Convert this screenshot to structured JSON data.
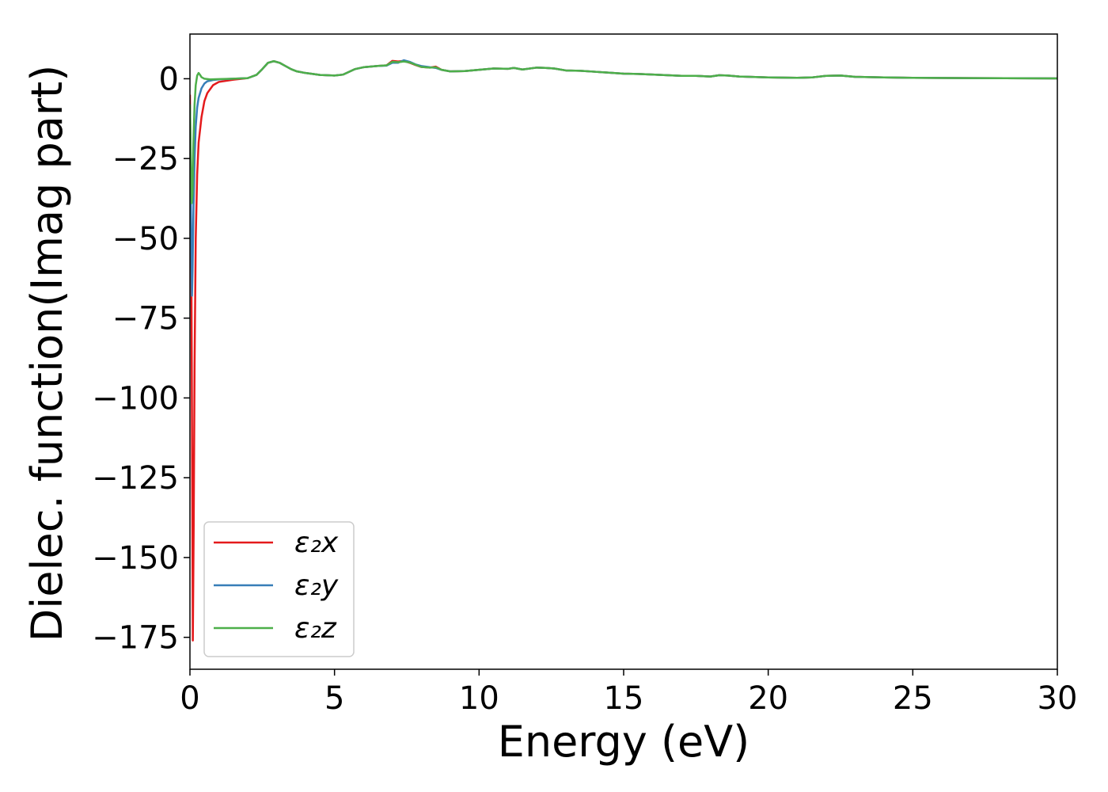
{
  "chart_data": {
    "type": "line",
    "title": "",
    "xlabel": "Energy (eV)",
    "ylabel": "Dielec. function(Imag part)",
    "xlim": [
      0,
      30
    ],
    "ylim": [
      -185,
      14
    ],
    "xticks": [
      0,
      5,
      10,
      15,
      20,
      25,
      30
    ],
    "yticks": [
      0,
      -25,
      -50,
      -75,
      -100,
      -125,
      -150,
      -175
    ],
    "xtick_labels": [
      "0",
      "5",
      "10",
      "15",
      "20",
      "25",
      "30"
    ],
    "ytick_labels": [
      "0",
      "−25",
      "−50",
      "−75",
      "−100",
      "−125",
      "−150",
      "−175"
    ],
    "grid": false,
    "legend_position": "lower-left",
    "series": [
      {
        "name": "ε₂x",
        "color": "#e41a1c",
        "points": [
          [
            0.0,
            -5
          ],
          [
            0.05,
            -60
          ],
          [
            0.08,
            -130
          ],
          [
            0.1,
            -176
          ],
          [
            0.13,
            -140
          ],
          [
            0.16,
            -90
          ],
          [
            0.2,
            -50
          ],
          [
            0.25,
            -30
          ],
          [
            0.3,
            -20
          ],
          [
            0.4,
            -12
          ],
          [
            0.5,
            -7
          ],
          [
            0.6,
            -4.5
          ],
          [
            0.8,
            -2
          ],
          [
            1.0,
            -1
          ],
          [
            1.5,
            -0.3
          ],
          [
            2.0,
            0.2
          ],
          [
            2.3,
            1.2
          ],
          [
            2.5,
            3
          ],
          [
            2.7,
            5
          ],
          [
            2.9,
            5.5
          ],
          [
            3.1,
            5
          ],
          [
            3.3,
            4
          ],
          [
            3.5,
            3
          ],
          [
            3.7,
            2.3
          ],
          [
            4.0,
            1.8
          ],
          [
            4.5,
            1.2
          ],
          [
            5.0,
            1
          ],
          [
            5.3,
            1.3
          ],
          [
            5.7,
            3
          ],
          [
            6.0,
            3.6
          ],
          [
            6.5,
            4
          ],
          [
            6.8,
            4.2
          ],
          [
            7.0,
            5.6
          ],
          [
            7.2,
            5.4
          ],
          [
            7.4,
            5.6
          ],
          [
            7.6,
            5
          ],
          [
            7.8,
            4.3
          ],
          [
            8.0,
            3.7
          ],
          [
            8.3,
            3.5
          ],
          [
            8.5,
            3.8
          ],
          [
            8.7,
            2.8
          ],
          [
            9.0,
            2.3
          ],
          [
            9.5,
            2.4
          ],
          [
            10.0,
            2.8
          ],
          [
            10.5,
            3.2
          ],
          [
            11.0,
            3.1
          ],
          [
            11.2,
            3.4
          ],
          [
            11.5,
            2.9
          ],
          [
            12.0,
            3.5
          ],
          [
            12.3,
            3.4
          ],
          [
            12.6,
            3.2
          ],
          [
            13.0,
            2.6
          ],
          [
            13.5,
            2.5
          ],
          [
            14.0,
            2.2
          ],
          [
            15.0,
            1.6
          ],
          [
            15.5,
            1.5
          ],
          [
            16.0,
            1.3
          ],
          [
            17.0,
            0.9
          ],
          [
            17.5,
            0.9
          ],
          [
            18.0,
            0.7
          ],
          [
            18.3,
            1.1
          ],
          [
            18.6,
            1.0
          ],
          [
            19.0,
            0.7
          ],
          [
            20.0,
            0.4
          ],
          [
            21.0,
            0.3
          ],
          [
            21.5,
            0.4
          ],
          [
            22.0,
            0.9
          ],
          [
            22.5,
            1.0
          ],
          [
            23.0,
            0.6
          ],
          [
            23.5,
            0.5
          ],
          [
            24.0,
            0.4
          ],
          [
            25.0,
            0.3
          ],
          [
            27.0,
            0.2
          ],
          [
            30.0,
            0.1
          ]
        ]
      },
      {
        "name": "ε₂y",
        "color": "#377eb8",
        "points": [
          [
            0.0,
            -10
          ],
          [
            0.04,
            -45
          ],
          [
            0.07,
            -68
          ],
          [
            0.09,
            -60
          ],
          [
            0.12,
            -42
          ],
          [
            0.16,
            -25
          ],
          [
            0.2,
            -15
          ],
          [
            0.25,
            -9
          ],
          [
            0.3,
            -6
          ],
          [
            0.4,
            -3
          ],
          [
            0.5,
            -1.5
          ],
          [
            0.6,
            -0.8
          ],
          [
            0.8,
            -0.4
          ],
          [
            1.0,
            -0.2
          ],
          [
            1.5,
            0
          ],
          [
            2.0,
            0.2
          ],
          [
            2.3,
            1.2
          ],
          [
            2.5,
            3
          ],
          [
            2.7,
            5
          ],
          [
            2.9,
            5.5
          ],
          [
            3.1,
            5
          ],
          [
            3.3,
            4
          ],
          [
            3.5,
            3
          ],
          [
            3.7,
            2.3
          ],
          [
            4.0,
            1.8
          ],
          [
            4.5,
            1.2
          ],
          [
            5.0,
            1
          ],
          [
            5.3,
            1.3
          ],
          [
            5.7,
            3
          ],
          [
            6.0,
            3.6
          ],
          [
            6.5,
            4
          ],
          [
            6.8,
            4.1
          ],
          [
            7.0,
            5.0
          ],
          [
            7.2,
            5.0
          ],
          [
            7.4,
            5.8
          ],
          [
            7.6,
            5.3
          ],
          [
            7.8,
            4.5
          ],
          [
            8.0,
            4.0
          ],
          [
            8.3,
            3.6
          ],
          [
            8.5,
            3.4
          ],
          [
            8.7,
            2.8
          ],
          [
            9.0,
            2.3
          ],
          [
            9.5,
            2.4
          ],
          [
            10.0,
            2.8
          ],
          [
            10.5,
            3.2
          ],
          [
            11.0,
            3.1
          ],
          [
            11.2,
            3.4
          ],
          [
            11.5,
            2.9
          ],
          [
            12.0,
            3.5
          ],
          [
            12.3,
            3.4
          ],
          [
            12.6,
            3.2
          ],
          [
            13.0,
            2.6
          ],
          [
            13.5,
            2.5
          ],
          [
            14.0,
            2.2
          ],
          [
            15.0,
            1.6
          ],
          [
            15.5,
            1.5
          ],
          [
            16.0,
            1.3
          ],
          [
            17.0,
            0.9
          ],
          [
            17.5,
            0.9
          ],
          [
            18.0,
            0.7
          ],
          [
            18.3,
            1.1
          ],
          [
            18.6,
            1.0
          ],
          [
            19.0,
            0.7
          ],
          [
            20.0,
            0.4
          ],
          [
            21.0,
            0.3
          ],
          [
            21.5,
            0.4
          ],
          [
            22.0,
            0.9
          ],
          [
            22.5,
            1.0
          ],
          [
            23.0,
            0.6
          ],
          [
            23.5,
            0.5
          ],
          [
            24.0,
            0.4
          ],
          [
            25.0,
            0.3
          ],
          [
            27.0,
            0.2
          ],
          [
            30.0,
            0.1
          ]
        ]
      },
      {
        "name": "ε₂z",
        "color": "#4daf4a",
        "points": [
          [
            0.0,
            -8
          ],
          [
            0.03,
            -25
          ],
          [
            0.06,
            -39
          ],
          [
            0.09,
            -36
          ],
          [
            0.12,
            -20
          ],
          [
            0.16,
            -8
          ],
          [
            0.2,
            -2
          ],
          [
            0.25,
            1
          ],
          [
            0.3,
            1.8
          ],
          [
            0.35,
            1.2
          ],
          [
            0.4,
            0.5
          ],
          [
            0.5,
            0.0
          ],
          [
            0.7,
            -0.2
          ],
          [
            1.0,
            -0.1
          ],
          [
            1.5,
            0
          ],
          [
            2.0,
            0.2
          ],
          [
            2.3,
            1.2
          ],
          [
            2.5,
            3
          ],
          [
            2.7,
            5
          ],
          [
            2.9,
            5.5
          ],
          [
            3.1,
            5
          ],
          [
            3.3,
            4
          ],
          [
            3.5,
            3
          ],
          [
            3.7,
            2.3
          ],
          [
            4.0,
            1.8
          ],
          [
            4.5,
            1.2
          ],
          [
            5.0,
            1
          ],
          [
            5.3,
            1.3
          ],
          [
            5.7,
            3
          ],
          [
            6.0,
            3.6
          ],
          [
            6.5,
            4
          ],
          [
            6.8,
            4.2
          ],
          [
            7.0,
            5.3
          ],
          [
            7.2,
            5.2
          ],
          [
            7.4,
            5.4
          ],
          [
            7.6,
            5.1
          ],
          [
            7.8,
            4.4
          ],
          [
            8.0,
            3.7
          ],
          [
            8.3,
            3.5
          ],
          [
            8.5,
            3.6
          ],
          [
            8.7,
            2.8
          ],
          [
            9.0,
            2.3
          ],
          [
            9.5,
            2.4
          ],
          [
            10.0,
            2.8
          ],
          [
            10.5,
            3.2
          ],
          [
            11.0,
            3.1
          ],
          [
            11.2,
            3.4
          ],
          [
            11.5,
            2.9
          ],
          [
            12.0,
            3.5
          ],
          [
            12.3,
            3.4
          ],
          [
            12.6,
            3.2
          ],
          [
            13.0,
            2.6
          ],
          [
            13.5,
            2.5
          ],
          [
            14.0,
            2.2
          ],
          [
            15.0,
            1.6
          ],
          [
            15.5,
            1.5
          ],
          [
            16.0,
            1.3
          ],
          [
            17.0,
            0.9
          ],
          [
            17.5,
            0.9
          ],
          [
            18.0,
            0.7
          ],
          [
            18.3,
            1.1
          ],
          [
            18.6,
            1.0
          ],
          [
            19.0,
            0.7
          ],
          [
            20.0,
            0.4
          ],
          [
            21.0,
            0.3
          ],
          [
            21.5,
            0.4
          ],
          [
            22.0,
            0.9
          ],
          [
            22.5,
            1.0
          ],
          [
            23.0,
            0.6
          ],
          [
            23.5,
            0.5
          ],
          [
            24.0,
            0.4
          ],
          [
            25.0,
            0.3
          ],
          [
            27.0,
            0.2
          ],
          [
            30.0,
            0.1
          ]
        ]
      }
    ]
  }
}
